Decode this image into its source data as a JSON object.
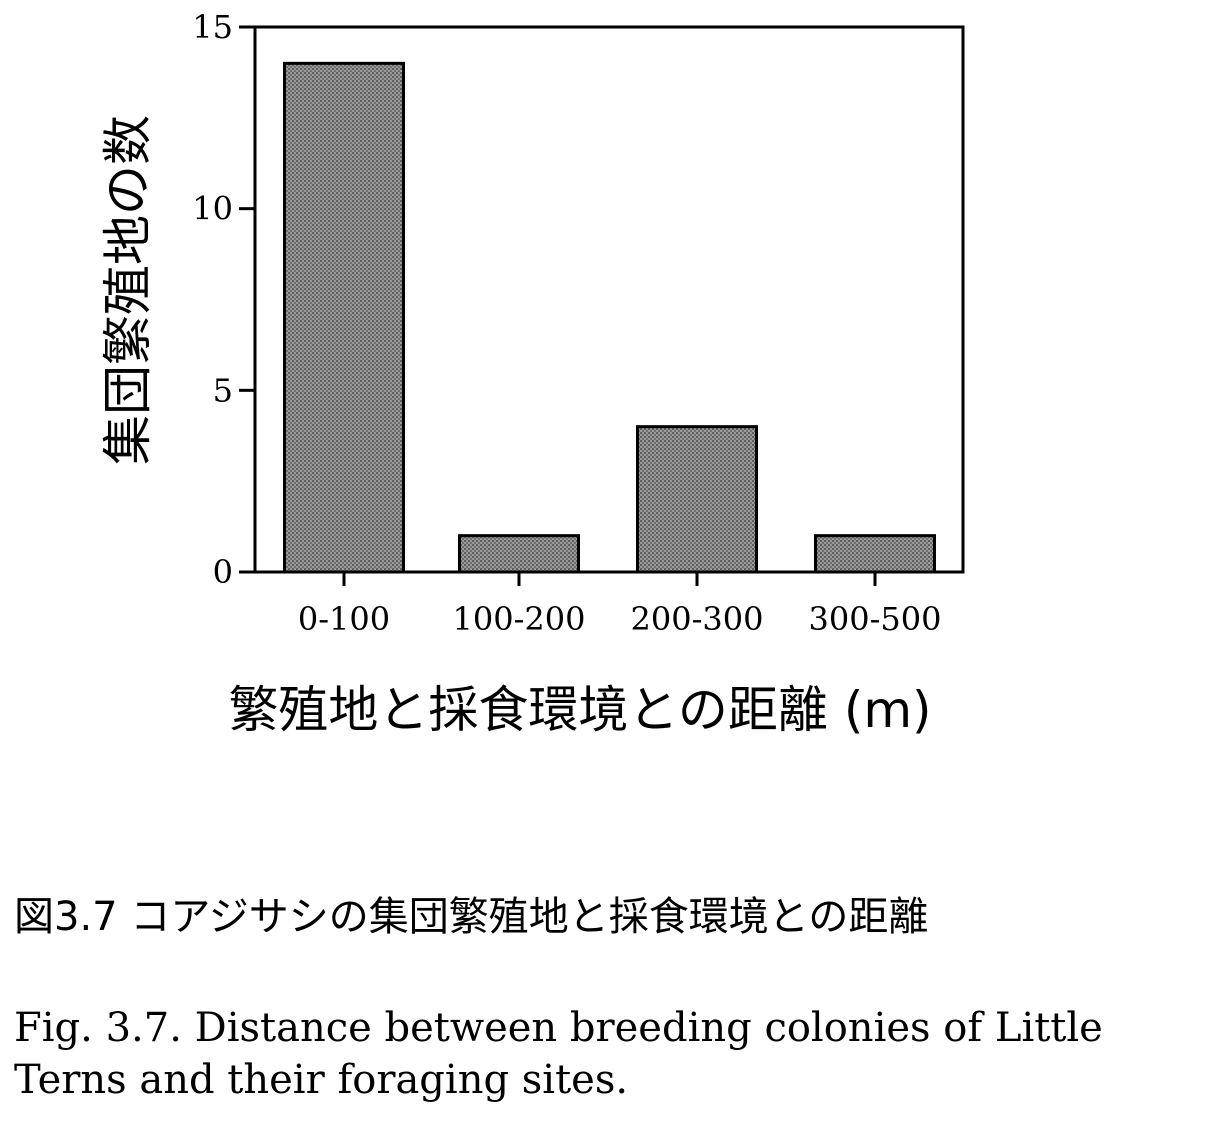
{
  "chart_data": {
    "type": "bar",
    "categories": [
      "0-100",
      "100-200",
      "200-300",
      "300-500"
    ],
    "values": [
      14,
      1,
      4,
      1
    ],
    "xlabel": "繁殖地と採食環境との距離 (m)",
    "ylabel": "集団繁殖地の数",
    "ylim": [
      0,
      15
    ],
    "yticks": [
      0,
      5,
      10,
      15
    ],
    "grid": false,
    "legend": "none",
    "bar_color": "#8c8c8c",
    "bar_stroke": "#000000"
  },
  "caption": {
    "japanese": "図3.7 コアジサシの集団繁殖地と採食環境との距離",
    "english": "Fig. 3.7.  Distance between breeding colonies of Little Terns and their foraging sites."
  }
}
